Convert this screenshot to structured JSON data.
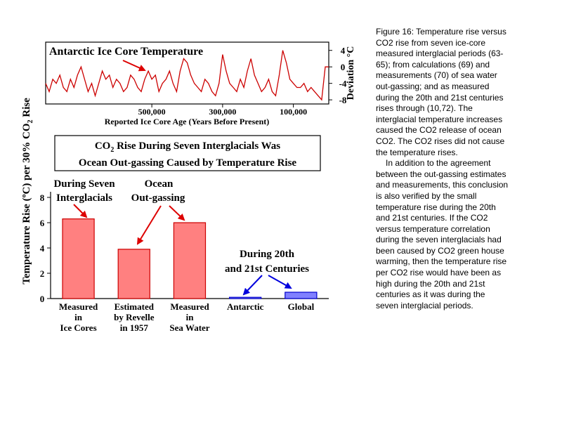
{
  "caption": {
    "paragraph1": "Figure 16: Temperature rise versus CO2 rise from seven ice-core measured interglacial periods (63-65); from calculations (69) and measurements (70) of sea water out-gassing; and as measured during the 20th and 21st centuries rises through (10,72). The interglacial temperature increases caused the CO2 release of ocean CO2. The CO2 rises did not cause the temperature rises.",
    "paragraph2": "In addition to the agreement between the out-gassing estimates and measurements, this conclusion is also verified by the small temperature rise during the 20th and 21st centuries. If the CO2 versus temperature correlation during the seven interglacials had been caused by CO2 green house warming, then the temperature rise per CO2 rise would have been as high during the 20th and 21st centuries as it was during the seven interglacial periods."
  },
  "colors": {
    "trace": "#cc0000",
    "bar_red_fill": "#ff8080",
    "bar_red_stroke": "#cc0000",
    "bar_blue_fill": "#8080ff",
    "bar_blue_stroke": "#0000cc",
    "arrow_red": "#dd0000",
    "arrow_blue": "#0000dd"
  },
  "annotations": {
    "interglacials_line1": "During Seven",
    "interglacials_line2": "Interglacials",
    "outgassing_line1": "Ocean",
    "outgassing_line2": "Out-gassing",
    "centuries_line1": "During 20th",
    "centuries_line2": "and 21st Centuries"
  },
  "box_title": {
    "line1_prefix": "CO",
    "line1_sub": "2",
    "line1_rest": " Rise During Seven Interglacials Was",
    "line2": "Ocean Out-gassing Caused by Temperature Rise"
  },
  "chart_data": [
    {
      "type": "line",
      "title": "Antarctic Ice Core Temperature",
      "xlabel": "Reported Ice Core Age (Years Before Present)",
      "ylabel": "Deviation °C",
      "x_ticks": [
        500000,
        300000,
        100000
      ],
      "x_tick_labels": [
        "500,000",
        "300,000",
        "100,000"
      ],
      "xlim": [
        800000,
        0
      ],
      "y_ticks": [
        4,
        0,
        -4,
        -8
      ],
      "y_tick_labels": [
        "4",
        "0",
        "-4",
        "-8"
      ],
      "ylim": [
        -9,
        6
      ],
      "legend": "none",
      "grid": false,
      "series": [
        {
          "x": [
            800000,
            790000,
            780000,
            770000,
            760000,
            750000,
            740000,
            730000,
            720000,
            710000,
            700000,
            690000,
            680000,
            670000,
            660000,
            650000,
            640000,
            630000,
            620000,
            610000,
            600000,
            590000,
            580000,
            570000,
            560000,
            550000,
            540000,
            530000,
            520000,
            510000,
            500000,
            490000,
            480000,
            470000,
            460000,
            450000,
            440000,
            430000,
            420000,
            410000,
            400000,
            390000,
            380000,
            370000,
            360000,
            350000,
            340000,
            330000,
            320000,
            310000,
            300000,
            290000,
            280000,
            270000,
            260000,
            250000,
            240000,
            230000,
            220000,
            210000,
            200000,
            190000,
            180000,
            170000,
            160000,
            150000,
            140000,
            130000,
            120000,
            110000,
            100000,
            90000,
            80000,
            70000,
            60000,
            50000,
            40000,
            30000,
            20000,
            10000,
            0
          ],
          "values": [
            -4,
            -6,
            -3,
            -4,
            -2,
            -5,
            -6,
            -3,
            -5,
            -2,
            0,
            -3,
            -6,
            -4,
            -7,
            -4,
            -1,
            -3,
            -2,
            -5,
            -3,
            -4,
            -6,
            -5,
            -2,
            -3,
            -5,
            -6,
            -3,
            -1,
            -3,
            -2,
            -6,
            -4,
            -3,
            -1,
            -4,
            -6,
            -1,
            2,
            1,
            -2,
            -4,
            -5,
            -6,
            -3,
            -4,
            -6,
            -7,
            -4,
            3,
            -1,
            -4,
            -5,
            -6,
            -3,
            -5,
            -1,
            2,
            -2,
            -4,
            -6,
            -5,
            -3,
            -6,
            -7,
            -2,
            4,
            1,
            -3,
            -4,
            -5,
            -5,
            -4,
            -6,
            -5,
            -6,
            -7,
            -8,
            0,
            0
          ]
        }
      ]
    },
    {
      "type": "bar",
      "title": "",
      "ylabel_prefix": "Temperature Rise (ºC) per 30%  CO",
      "ylabel_sub": "2",
      "ylabel_suffix": " Rise",
      "ylim": [
        0,
        9
      ],
      "y_ticks": [
        0,
        2,
        4,
        6,
        8
      ],
      "y_tick_labels": [
        "0",
        "2",
        "4",
        "6",
        "8"
      ],
      "legend": "none",
      "grid": false,
      "categories": [
        [
          "Measured",
          "in",
          "Ice Cores"
        ],
        [
          "Estimated",
          "by Revelle",
          "in 1957"
        ],
        [
          "Measured",
          "in",
          "Sea Water"
        ],
        [
          "Antarctic"
        ],
        [
          "Global"
        ]
      ],
      "values": [
        6.3,
        3.9,
        6.0,
        0.1,
        0.5
      ],
      "bar_color_groups": [
        "red",
        "red",
        "red",
        "blue",
        "blue"
      ]
    }
  ]
}
